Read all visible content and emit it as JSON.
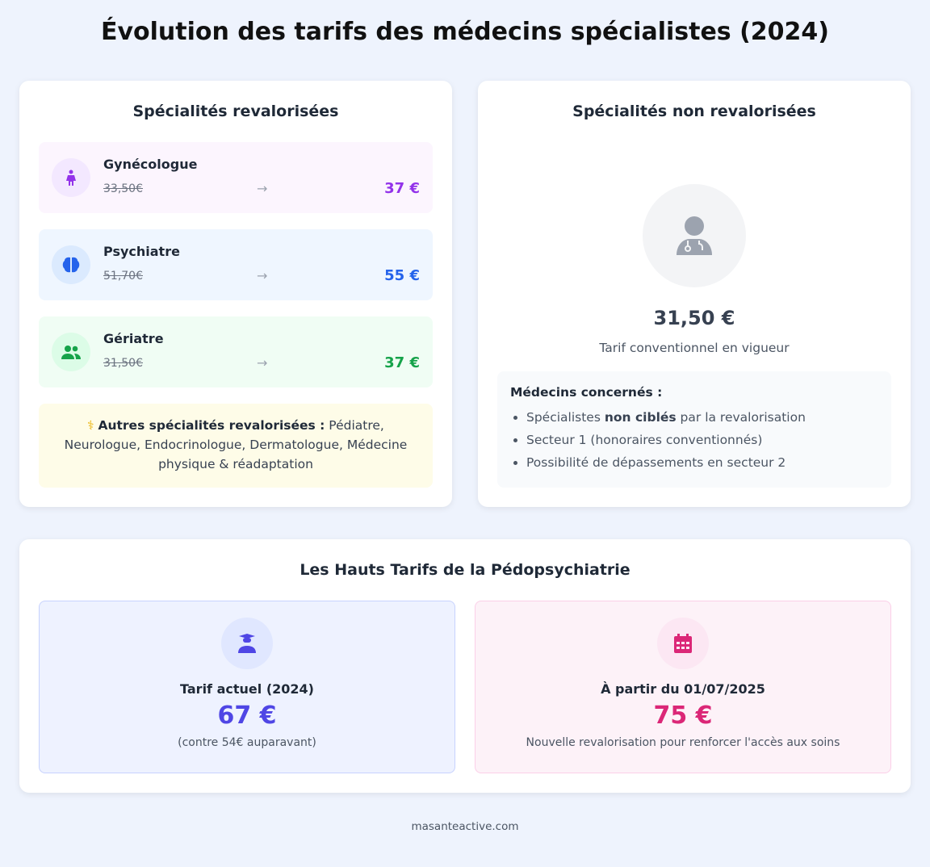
{
  "title": "Évolution des tarifs des médecins spécialistes (2024)",
  "revalorisees": {
    "title": "Spécialités revalorisées",
    "items": [
      {
        "name": "Gynécologue",
        "old": "33,50€",
        "new": "37 €",
        "icon": "female-icon",
        "color": "#9333ea",
        "bg": "#fcf5fe",
        "icon_bg": "#f3e8ff"
      },
      {
        "name": "Psychiatre",
        "old": "51,70€",
        "new": "55 €",
        "icon": "brain-icon",
        "color": "#2563eb",
        "bg": "#eff6ff",
        "icon_bg": "#dbeafe"
      },
      {
        "name": "Gériatre",
        "old": "31,50€",
        "new": "37 €",
        "icon": "users-icon",
        "color": "#16a34a",
        "bg": "#f0fdf4",
        "icon_bg": "#dcfce7"
      }
    ],
    "arrow": "→",
    "note_label": "Autres spécialités revalorisées :",
    "note_text": " Pédiatre, Neurologue, Endocrinologue, Dermatologue, Médecine physique & réadaptation"
  },
  "non_revalorisees": {
    "title": "Spécialités non revalorisées",
    "price": "31,50 €",
    "caption": "Tarif conventionnel en vigueur",
    "concerned_title": "Médecins concernés :",
    "bullet1_a": "Spécialistes ",
    "bullet1_b": "non ciblés",
    "bullet1_c": " par la revalorisation",
    "bullet2": "Secteur 1 (honoraires conventionnés)",
    "bullet3": "Possibilité de dépassements en secteur 2"
  },
  "pedopsy": {
    "title": "Les Hauts Tarifs de la Pédopsychiatrie",
    "current": {
      "label": "Tarif actuel (2024)",
      "price": "67 €",
      "sub": "(contre 54€ auparavant)",
      "color": "#4f46e5"
    },
    "future": {
      "label": "À partir du 01/07/2025",
      "price": "75 €",
      "sub": "Nouvelle revalorisation pour renforcer l'accès aux soins",
      "color": "#db2777"
    }
  },
  "footer": "masanteactive.com"
}
